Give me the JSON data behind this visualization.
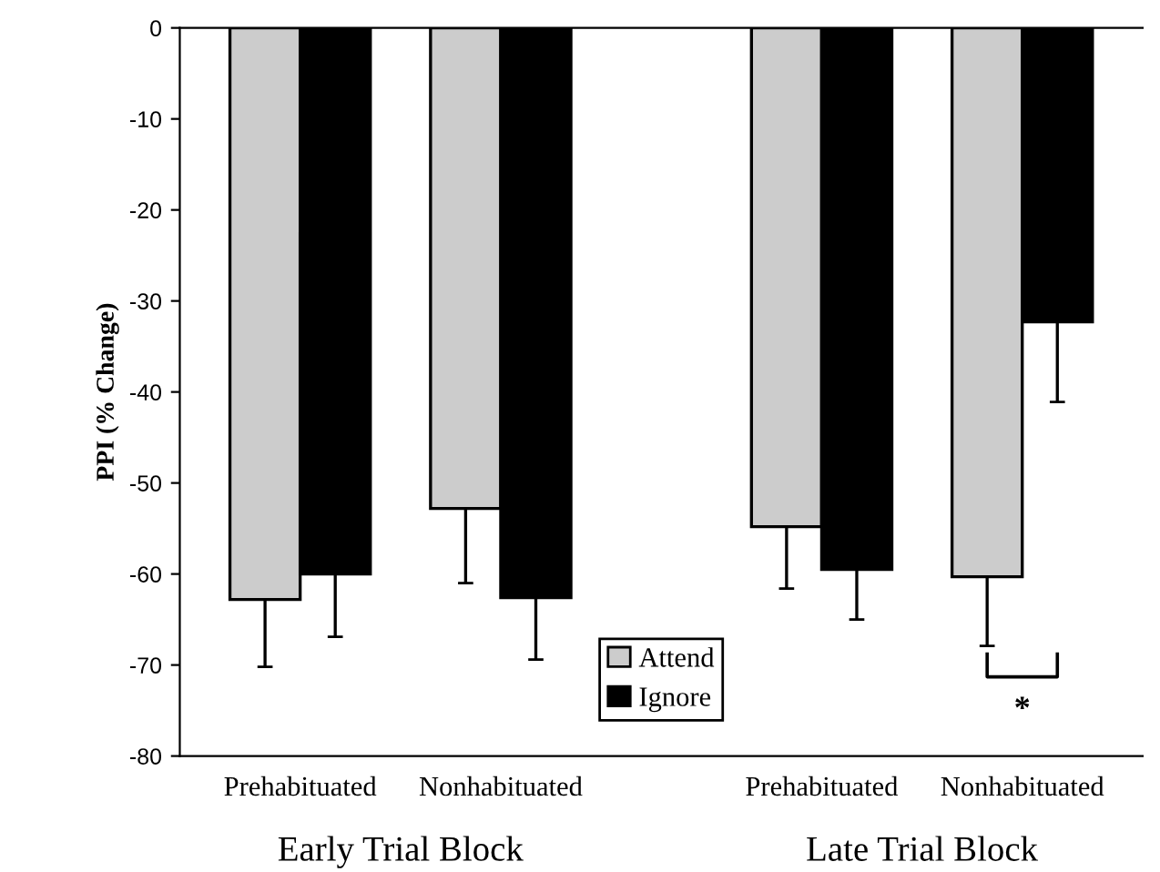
{
  "chart_data": {
    "type": "bar",
    "ylabel": "PPI (% Change)",
    "categories": [
      "Prehabituated",
      "Nonhabituated",
      "Prehabituated",
      "Nonhabituated"
    ],
    "series": [
      {
        "name": "Attend",
        "color": "#cccccc",
        "values": [
          -62.8,
          -52.8,
          -54.8,
          -60.3
        ],
        "errors": [
          [
            -70.2,
            -62.8
          ],
          [
            -61,
            -52.8
          ],
          [
            -61.6,
            -54.8
          ],
          [
            -67.9,
            -60.3
          ]
        ]
      },
      {
        "name": "Ignore",
        "color": "#000000",
        "values": [
          -60,
          -62.6,
          -59.5,
          -32.3
        ],
        "errors": [
          [
            -66.9,
            -60
          ],
          [
            -69.4,
            -62.6
          ],
          [
            -65,
            -59.5
          ],
          [
            -41.1,
            -32.3
          ]
        ]
      }
    ],
    "ylim": [
      -80,
      0
    ],
    "yticks": [
      0,
      -10,
      -20,
      -30,
      -40,
      -50,
      -60,
      -70,
      -80
    ],
    "grid": false,
    "legend": "bottom",
    "annotations": [
      "*",
      "Early Trial Block",
      "Late Trial Block"
    ]
  }
}
